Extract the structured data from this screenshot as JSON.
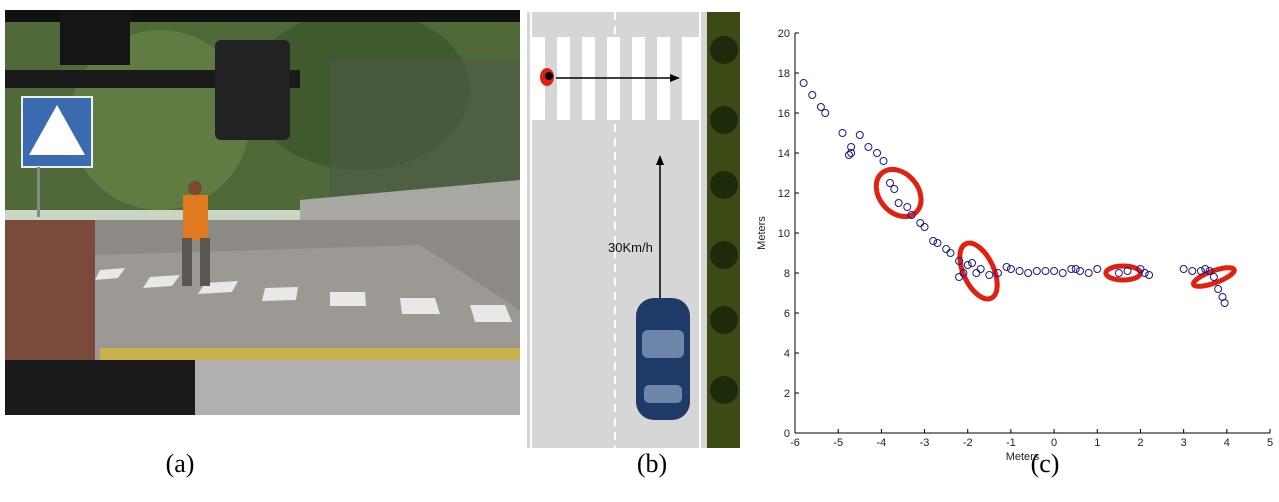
{
  "panels": {
    "a": {
      "caption": "(a)"
    },
    "b": {
      "caption": "(b)",
      "speed_label": "30Km/h"
    },
    "c": {
      "caption": "(c)"
    }
  },
  "chart_data": {
    "type": "scatter",
    "xlabel": "Meters",
    "ylabel": "Meters",
    "color": "#1a1a8c",
    "x": [
      -5.8,
      -5.6,
      -5.4,
      -5.3,
      -4.9,
      -4.7,
      -4.75,
      -4.7,
      -4.5,
      -4.3,
      -4.1,
      -3.95,
      -3.8,
      -3.7,
      -3.6,
      -3.4,
      -3.3,
      -3.1,
      -3.0,
      -2.8,
      -2.7,
      -2.5,
      -2.4,
      -2.2,
      -2.1,
      -2.2,
      -2.0,
      -1.9,
      -1.8,
      -1.7,
      -1.5,
      -1.3,
      -1.1,
      -1.0,
      -0.8,
      -0.6,
      -0.4,
      -0.2,
      0,
      0.2,
      0.4,
      0.5,
      0.6,
      0.8,
      1.0,
      1.5,
      1.7,
      2.0,
      2.1,
      2.2,
      3.0,
      3.2,
      3.4,
      3.5,
      3.6,
      3.7,
      3.8,
      3.9,
      3.95
    ],
    "y": [
      17.5,
      16.9,
      16.3,
      16.0,
      15.0,
      14.3,
      13.9,
      14.0,
      14.9,
      14.3,
      14.0,
      13.6,
      12.5,
      12.2,
      11.5,
      11.3,
      10.9,
      10.5,
      10.3,
      9.6,
      9.5,
      9.2,
      9.0,
      8.6,
      8.0,
      7.8,
      8.4,
      8.5,
      8.0,
      8.2,
      7.9,
      8.0,
      8.3,
      8.2,
      8.1,
      8.0,
      8.1,
      8.1,
      8.1,
      8.0,
      8.2,
      8.2,
      8.1,
      8.0,
      8.2,
      8.0,
      8.1,
      8.2,
      8.0,
      7.9,
      8.2,
      8.1,
      8.1,
      8.2,
      8.1,
      7.8,
      7.2,
      6.8,
      6.5
    ],
    "ellipses": {
      "color": "#e02010",
      "x": [
        -3.6,
        -1.75,
        1.6,
        3.7
      ],
      "y": [
        12.0,
        8.1,
        8.0,
        7.8
      ],
      "rx": [
        0.45,
        0.35,
        0.4,
        0.5
      ],
      "ry": [
        1.3,
        1.5,
        0.35,
        0.3
      ],
      "angle": [
        -40,
        -25,
        0,
        -20
      ]
    },
    "xlim": [
      -6,
      5
    ],
    "ylim": [
      0,
      20
    ],
    "xticks": [
      -6,
      -5,
      -4,
      -3,
      -2,
      -1,
      0,
      1,
      2,
      3,
      4,
      5
    ],
    "yticks": [
      0,
      2,
      4,
      6,
      8,
      10,
      12,
      14,
      16,
      18,
      20
    ]
  }
}
